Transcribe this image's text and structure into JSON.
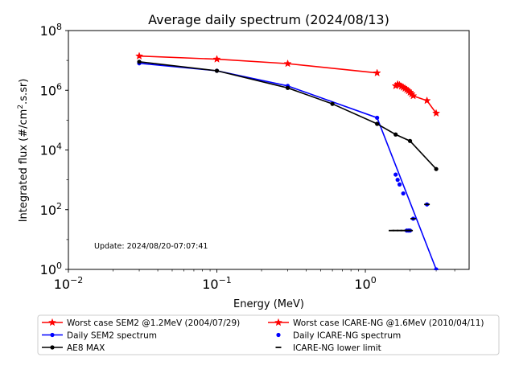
{
  "chart_data": {
    "type": "line",
    "title": "Average daily spectrum (2024/08/13)",
    "xlabel": "Energy (MeV)",
    "ylabel": "Integrated flux (#/cm².s.sr)",
    "xscale": "log",
    "yscale": "log",
    "xlim": [
      0.01,
      5
    ],
    "ylim": [
      1,
      100000000
    ],
    "xticks": [
      {
        "value": 0.01,
        "base": "10",
        "exp": "−2"
      },
      {
        "value": 0.1,
        "base": "10",
        "exp": "−1"
      },
      {
        "value": 1,
        "base": "10",
        "exp": "0"
      }
    ],
    "yticks": [
      {
        "value": 1,
        "base": "10",
        "exp": "0"
      },
      {
        "value": 100,
        "base": "10",
        "exp": "2"
      },
      {
        "value": 10000,
        "base": "10",
        "exp": "4"
      },
      {
        "value": 1000000,
        "base": "10",
        "exp": "6"
      },
      {
        "value": 100000000,
        "base": "10",
        "exp": "8"
      }
    ],
    "annotation": "Update: 2024/08/20-07:07:41",
    "legend_position": "below",
    "series": [
      {
        "name": "Worst case SEM2 @1.2MeV (2004/07/29)",
        "color": "#ff0000",
        "style": "line",
        "marker": "star",
        "x": [
          0.03,
          0.1,
          0.3,
          1.2
        ],
        "y": [
          14000000,
          11000000,
          7800000,
          3800000
        ]
      },
      {
        "name": "Worst case ICARE-NG @1.6MeV (2010/04/11)",
        "color": "#ff0000",
        "style": "line",
        "marker": "star",
        "x": [
          1.6,
          1.65,
          1.7,
          1.75,
          1.8,
          1.85,
          1.9,
          1.95,
          2.0,
          2.05,
          2.1,
          2.6,
          3.0
        ],
        "y": [
          1400000,
          1600000,
          1500000,
          1350000,
          1250000,
          1150000,
          1050000,
          950000,
          850000,
          750000,
          650000,
          450000,
          170000
        ]
      },
      {
        "name": "Daily SEM2 spectrum",
        "color": "#0000ff",
        "style": "line",
        "marker": "dot",
        "x": [
          0.03,
          0.1,
          0.3,
          1.2,
          3.0
        ],
        "y": [
          8000000,
          4500000,
          1400000,
          120000,
          1
        ]
      },
      {
        "name": "AE8 MAX",
        "color": "#000000",
        "style": "line",
        "marker": "dot",
        "x": [
          0.03,
          0.1,
          0.3,
          0.6,
          1.2,
          1.6,
          2.0,
          3.0
        ],
        "y": [
          9000000,
          4500000,
          1200000,
          350000,
          75000,
          33000,
          20000,
          2300
        ]
      },
      {
        "name": "Daily ICARE-NG spectrum",
        "color": "#0000ff",
        "style": "scatter",
        "marker": "dot",
        "x": [
          1.6,
          1.65,
          1.7,
          1.8,
          1.9,
          1.95,
          2.0,
          2.1,
          2.6
        ],
        "y": [
          1500,
          1000,
          700,
          350,
          20,
          20,
          20,
          50,
          150
        ]
      },
      {
        "name": "ICARE-NG lower limit",
        "color": "#000000",
        "style": "scatter",
        "marker": "hline",
        "x": [
          1.5,
          1.6,
          1.7,
          1.8,
          1.9,
          1.95,
          2.0,
          2.1,
          2.6
        ],
        "y": [
          20,
          20,
          20,
          20,
          20,
          20,
          20,
          50,
          150
        ]
      }
    ]
  }
}
